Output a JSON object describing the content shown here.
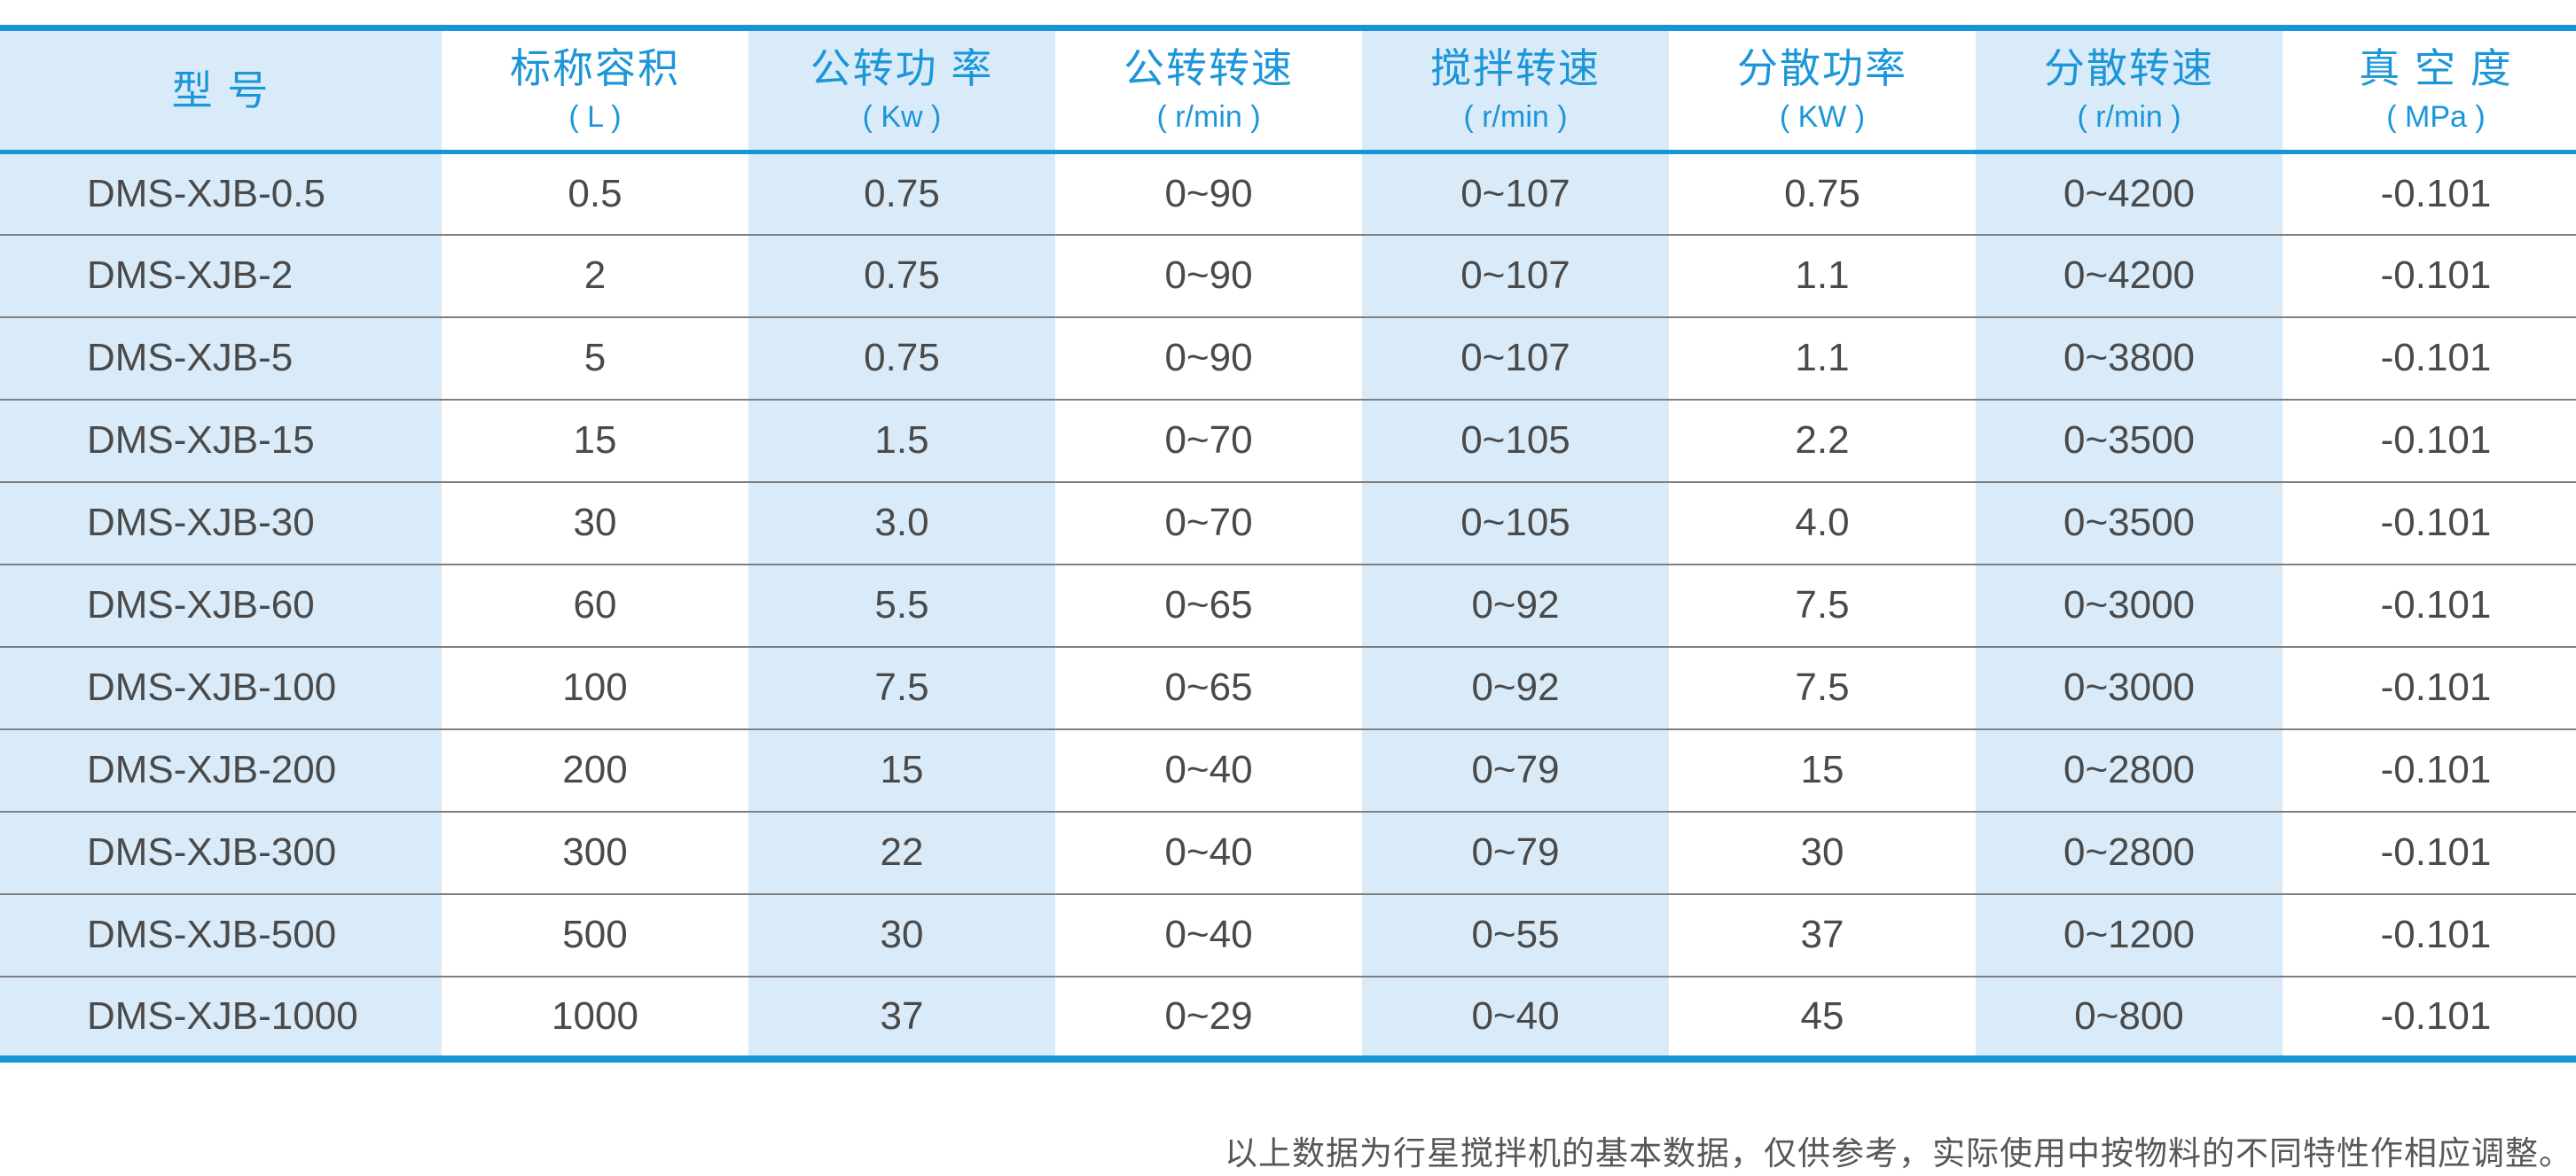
{
  "table": {
    "columns": [
      {
        "label": "型  号",
        "unit": ""
      },
      {
        "label": "标称容积",
        "unit": "( L )"
      },
      {
        "label": "公转功 率",
        "unit": "( Kw )"
      },
      {
        "label": "公转转速",
        "unit": "( r/min )"
      },
      {
        "label": "搅拌转速",
        "unit": "( r/min )"
      },
      {
        "label": "分散功率",
        "unit": "( KW )"
      },
      {
        "label": "分散转速",
        "unit": "( r/min )"
      },
      {
        "label": "真 空 度",
        "unit": "( MPa )"
      }
    ],
    "rows": [
      [
        "DMS-XJB-0.5",
        "0.5",
        "0.75",
        "0~90",
        "0~107",
        "0.75",
        "0~4200",
        "-0.101"
      ],
      [
        "DMS-XJB-2",
        "2",
        "0.75",
        "0~90",
        "0~107",
        "1.1",
        "0~4200",
        "-0.101"
      ],
      [
        "DMS-XJB-5",
        "5",
        "0.75",
        "0~90",
        "0~107",
        "1.1",
        "0~3800",
        "-0.101"
      ],
      [
        "DMS-XJB-15",
        "15",
        "1.5",
        "0~70",
        "0~105",
        "2.2",
        "0~3500",
        "-0.101"
      ],
      [
        "DMS-XJB-30",
        "30",
        "3.0",
        "0~70",
        "0~105",
        "4.0",
        "0~3500",
        "-0.101"
      ],
      [
        "DMS-XJB-60",
        "60",
        "5.5",
        "0~65",
        "0~92",
        "7.5",
        "0~3000",
        "-0.101"
      ],
      [
        "DMS-XJB-100",
        "100",
        "7.5",
        "0~65",
        "0~92",
        "7.5",
        "0~3000",
        "-0.101"
      ],
      [
        "DMS-XJB-200",
        "200",
        "15",
        "0~40",
        "0~79",
        "15",
        "0~2800",
        "-0.101"
      ],
      [
        "DMS-XJB-300",
        "300",
        "22",
        "0~40",
        "0~79",
        "30",
        "0~2800",
        "-0.101"
      ],
      [
        "DMS-XJB-500",
        "500",
        "30",
        "0~40",
        "0~55",
        "37",
        "0~1200",
        "-0.101"
      ],
      [
        "DMS-XJB-1000",
        "1000",
        "37",
        "0~29",
        "0~40",
        "45",
        "0~800",
        "-0.101"
      ]
    ]
  },
  "footer": {
    "note": "以上数据为行星搅拌机的基本数据，仅供参考，实际使用中按物料的不同特性作相应调整。"
  },
  "colors": {
    "accent_blue": "#1695d7",
    "header_text": "#1b96d8",
    "light_blue": "#d9ebf9",
    "body_text": "#4a4a4a",
    "row_line": "#7f7f7f",
    "note_text": "#575757"
  }
}
